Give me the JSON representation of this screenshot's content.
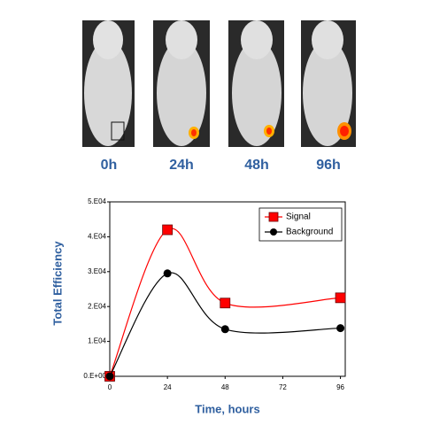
{
  "image_labels": [
    "0h",
    "24h",
    "48h",
    "96h"
  ],
  "chart_data": {
    "type": "line",
    "x_label": "Time, hours",
    "y_label": "Total Efficiency",
    "x": [
      0,
      24,
      48,
      96
    ],
    "series": [
      {
        "name": "Signal",
        "color": "#ff0000",
        "marker": "square",
        "values": [
          0,
          42000,
          21000,
          22500
        ]
      },
      {
        "name": "Background",
        "color": "#000000",
        "marker": "circle",
        "values": [
          0,
          29500,
          13500,
          13800
        ]
      }
    ],
    "xlim": [
      0,
      98
    ],
    "xticks": [
      0,
      24,
      48,
      72,
      96
    ],
    "ylim": [
      0,
      50000
    ],
    "yticks": [
      {
        "value": 0,
        "label": "0.E+00"
      },
      {
        "value": 10000,
        "label": "1.E04"
      },
      {
        "value": 20000,
        "label": "2.E04"
      },
      {
        "value": 30000,
        "label": "3.E04"
      },
      {
        "value": 40000,
        "label": "4.E04"
      },
      {
        "value": 50000,
        "label": "5.E04"
      }
    ],
    "legend": "upper right",
    "smooth": true
  }
}
